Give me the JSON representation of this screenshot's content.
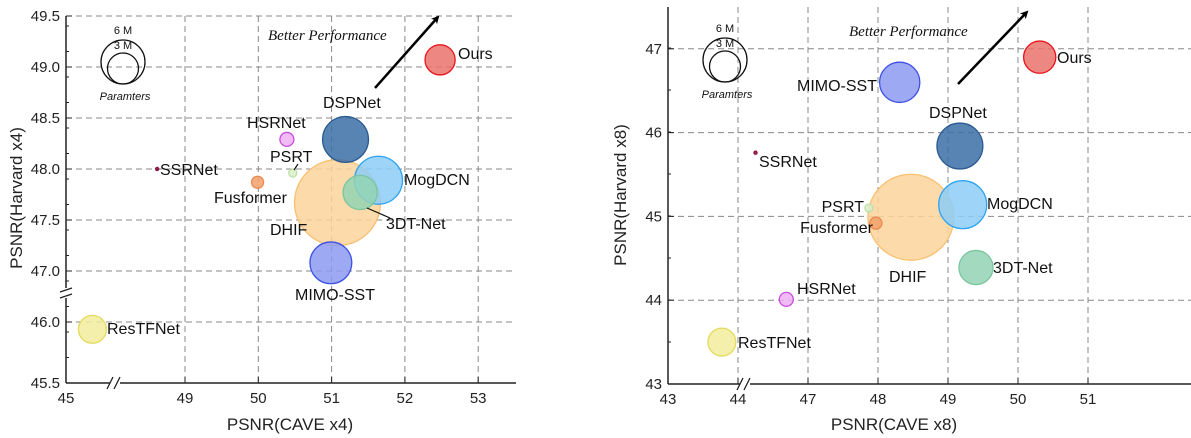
{
  "chart_data": [
    {
      "type": "scatter",
      "variant": "bubble",
      "xlabel": "PSNR(CAVE x4)",
      "ylabel": "PSNR(Harvard x4)",
      "x_ticks": [
        45,
        49,
        50,
        51,
        52,
        53
      ],
      "y_ticks": [
        45.5,
        46.0,
        47.0,
        47.5,
        48.0,
        48.5,
        49.0,
        49.5
      ],
      "x_tick_labels": [
        "45",
        "49",
        "50",
        "51",
        "52",
        "53"
      ],
      "y_tick_labels": [
        "45.5",
        "46.0",
        "47.0",
        "47.5",
        "48.0",
        "48.5",
        "49.0",
        "49.5"
      ],
      "axis_breaks": {
        "x": [
          45,
          49
        ],
        "y": [
          46.0,
          47.0
        ]
      },
      "grid": true,
      "annotation": "Better Performance",
      "size_legend": {
        "title": "Paramters",
        "entries": [
          "6 M",
          "3 M"
        ],
        "values_M": [
          6,
          3
        ]
      },
      "points": [
        {
          "name": "Ours",
          "x": 52.48,
          "y": 49.07,
          "params_M": 2.8,
          "color": "#e9736b",
          "stroke": "#e8141c"
        },
        {
          "name": "DSPNet",
          "x": 51.19,
          "y": 48.29,
          "params_M": 6.5,
          "color": "#3b6fa6",
          "stroke": "#2a5a90"
        },
        {
          "name": "HSRNet",
          "x": 50.39,
          "y": 48.29,
          "params_M": 0.6,
          "color": "#eeb0f5",
          "stroke": "#c84de0"
        },
        {
          "name": "SSRNet",
          "x": 48.62,
          "y": 48.0,
          "params_M": 0.03,
          "color": "#8a1040",
          "stroke": "#8a1040"
        },
        {
          "name": "PSRT",
          "x": 50.47,
          "y": 47.96,
          "params_M": 0.2,
          "color": "#d9efc8",
          "stroke": "#bfe0a8"
        },
        {
          "name": "Fusformer",
          "x": 49.99,
          "y": 47.87,
          "params_M": 0.45,
          "color": "#f2a06a",
          "stroke": "#e88a50"
        },
        {
          "name": "DHIF",
          "x": 51.08,
          "y": 47.67,
          "params_M": 22.8,
          "color": "#fcd49a",
          "stroke": "#f8c070"
        },
        {
          "name": "MogDCN",
          "x": 51.64,
          "y": 47.89,
          "params_M": 7.1,
          "color": "#8ccdf7",
          "stroke": "#2ea3ef"
        },
        {
          "name": "3DT-Net",
          "x": 51.39,
          "y": 47.77,
          "params_M": 3.6,
          "color": "#93d3b4",
          "stroke": "#7cc4a0"
        },
        {
          "name": "MIMO-SST",
          "x": 50.99,
          "y": 47.08,
          "params_M": 5.4,
          "color": "#8d9af2",
          "stroke": "#3c50e6"
        },
        {
          "name": "ResTFNet",
          "x": 45.36,
          "y": 45.94,
          "params_M": 2.4,
          "color": "#f2ed9c",
          "stroke": "#e3da5c"
        }
      ]
    },
    {
      "type": "scatter",
      "variant": "bubble",
      "xlabel": "PSNR(CAVE x8)",
      "ylabel": "PSNR(Harvard x8)",
      "x_ticks": [
        43,
        44,
        47,
        48,
        49,
        50,
        51
      ],
      "y_ticks": [
        43,
        44,
        45,
        46,
        47
      ],
      "x_tick_labels": [
        "43",
        "44",
        "47",
        "48",
        "49",
        "50",
        "51"
      ],
      "y_tick_labels": [
        "43",
        "44",
        "45",
        "46",
        "47"
      ],
      "axis_breaks": {
        "x": [
          44,
          47
        ]
      },
      "grid": true,
      "annotation": "Better Performance",
      "size_legend": {
        "title": "Paramters",
        "entries": [
          "6 M",
          "3 M"
        ],
        "values_M": [
          6,
          3
        ]
      },
      "points": [
        {
          "name": "Ours",
          "x": 50.31,
          "y": 46.9,
          "params_M": 3.2,
          "color": "#e9736b",
          "stroke": "#e8141c"
        },
        {
          "name": "MIMO-SST",
          "x": 48.31,
          "y": 46.6,
          "params_M": 5.0,
          "color": "#8d9af2",
          "stroke": "#3c50e6"
        },
        {
          "name": "DSPNet",
          "x": 49.17,
          "y": 45.84,
          "params_M": 6.5,
          "color": "#3b6fa6",
          "stroke": "#2a5a90"
        },
        {
          "name": "SSRNet",
          "x": 44.25,
          "y": 45.76,
          "params_M": 0.03,
          "color": "#8a1040",
          "stroke": "#8a1040"
        },
        {
          "name": "PSRT",
          "x": 47.87,
          "y": 45.1,
          "params_M": 0.2,
          "color": "#d9efc8",
          "stroke": "#bfe0a8"
        },
        {
          "name": "Fusformer",
          "x": 47.97,
          "y": 44.92,
          "params_M": 0.45,
          "color": "#f2a06a",
          "stroke": "#e88a50"
        },
        {
          "name": "DHIF",
          "x": 48.47,
          "y": 44.99,
          "params_M": 22.8,
          "color": "#fcd49a",
          "stroke": "#f8c070"
        },
        {
          "name": "MogDCN",
          "x": 49.21,
          "y": 45.14,
          "params_M": 7.1,
          "color": "#8ccdf7",
          "stroke": "#2ea3ef"
        },
        {
          "name": "3DT-Net",
          "x": 49.4,
          "y": 44.39,
          "params_M": 3.6,
          "color": "#93d3b4",
          "stroke": "#7cc4a0"
        },
        {
          "name": "HSRNet",
          "x": 46.69,
          "y": 44.01,
          "params_M": 0.6,
          "color": "#eeb0f5",
          "stroke": "#c84de0"
        },
        {
          "name": "ResTFNet",
          "x": 43.77,
          "y": 43.5,
          "params_M": 2.4,
          "color": "#f2ed9c",
          "stroke": "#e3da5c"
        }
      ]
    }
  ]
}
